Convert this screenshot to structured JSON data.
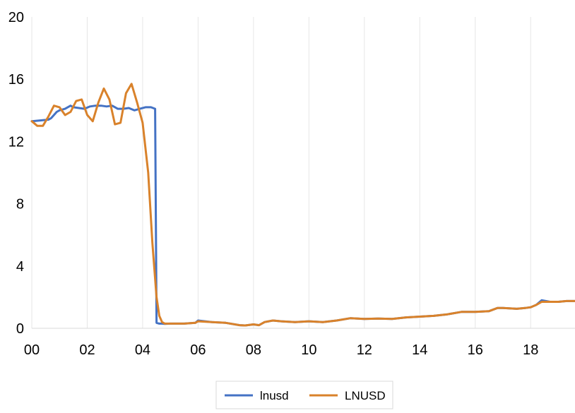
{
  "chart_data": {
    "type": "line",
    "title": "",
    "xlabel": "",
    "ylabel": "",
    "xlim": [
      0,
      19.6
    ],
    "ylim": [
      0,
      20
    ],
    "grid": {
      "vertical": true,
      "horizontal": false
    },
    "legend_position": "bottom-center",
    "y_ticks": [
      "0",
      "4",
      "8",
      "12",
      "16",
      "20"
    ],
    "x_ticks": [
      "00",
      "02",
      "04",
      "06",
      "08",
      "10",
      "12",
      "14",
      "16",
      "18"
    ],
    "series": [
      {
        "name": "lnusd",
        "color": "#4472c4",
        "x": [
          0.0,
          0.3,
          0.6,
          0.7,
          0.9,
          1.0,
          1.2,
          1.4,
          1.5,
          1.7,
          1.9,
          2.1,
          2.3,
          2.5,
          2.7,
          2.9,
          3.1,
          3.3,
          3.5,
          3.7,
          3.9,
          4.1,
          4.3,
          4.45,
          4.5,
          4.6,
          4.7,
          4.8,
          5.0,
          5.5,
          5.9,
          6.0,
          6.5,
          7.0,
          7.5,
          7.7,
          8.0,
          8.2,
          8.4,
          8.7,
          9.0,
          9.5,
          10.0,
          10.5,
          11.0,
          11.5,
          12.0,
          12.5,
          13.0,
          13.5,
          14.0,
          14.5,
          15.0,
          15.5,
          16.0,
          16.5,
          16.8,
          17.0,
          17.5,
          17.8,
          18.0,
          18.2,
          18.4,
          18.7,
          19.0,
          19.3,
          19.6
        ],
        "y": [
          13.3,
          13.35,
          13.4,
          13.5,
          13.9,
          14.0,
          14.1,
          14.3,
          14.2,
          14.15,
          14.1,
          14.25,
          14.3,
          14.3,
          14.25,
          14.3,
          14.1,
          14.1,
          14.15,
          14.0,
          14.1,
          14.2,
          14.2,
          14.1,
          0.35,
          0.3,
          0.3,
          0.28,
          0.3,
          0.3,
          0.35,
          0.5,
          0.4,
          0.35,
          0.2,
          0.18,
          0.25,
          0.2,
          0.4,
          0.5,
          0.45,
          0.4,
          0.45,
          0.4,
          0.5,
          0.65,
          0.6,
          0.62,
          0.6,
          0.7,
          0.75,
          0.8,
          0.9,
          1.05,
          1.05,
          1.1,
          1.3,
          1.3,
          1.25,
          1.3,
          1.35,
          1.5,
          1.8,
          1.7,
          1.7,
          1.75,
          1.75
        ]
      },
      {
        "name": "LNUSD",
        "color": "#d9822b",
        "x": [
          0.0,
          0.2,
          0.4,
          0.6,
          0.8,
          1.0,
          1.2,
          1.4,
          1.6,
          1.8,
          2.0,
          2.2,
          2.4,
          2.6,
          2.8,
          3.0,
          3.2,
          3.4,
          3.6,
          3.8,
          4.0,
          4.2,
          4.35,
          4.5,
          4.6,
          4.7,
          4.8,
          4.9,
          5.0,
          5.5,
          5.9,
          6.0,
          6.5,
          7.0,
          7.5,
          7.7,
          8.0,
          8.2,
          8.4,
          8.7,
          9.0,
          9.5,
          10.0,
          10.5,
          11.0,
          11.5,
          12.0,
          12.5,
          13.0,
          13.5,
          14.0,
          14.5,
          15.0,
          15.5,
          16.0,
          16.5,
          16.8,
          17.0,
          17.5,
          17.8,
          18.0,
          18.2,
          18.4,
          18.7,
          19.0,
          19.3,
          19.6
        ],
        "y": [
          13.3,
          13.0,
          13.0,
          13.6,
          14.3,
          14.2,
          13.7,
          13.9,
          14.6,
          14.7,
          13.7,
          13.3,
          14.5,
          15.4,
          14.7,
          13.1,
          13.2,
          15.1,
          15.7,
          14.5,
          13.2,
          10.0,
          5.5,
          2.0,
          0.8,
          0.4,
          0.3,
          0.3,
          0.3,
          0.3,
          0.35,
          0.45,
          0.4,
          0.35,
          0.2,
          0.18,
          0.25,
          0.2,
          0.4,
          0.5,
          0.45,
          0.4,
          0.45,
          0.4,
          0.5,
          0.65,
          0.6,
          0.62,
          0.6,
          0.7,
          0.75,
          0.8,
          0.9,
          1.05,
          1.05,
          1.1,
          1.3,
          1.3,
          1.25,
          1.3,
          1.35,
          1.5,
          1.7,
          1.7,
          1.7,
          1.75,
          1.75
        ]
      }
    ]
  }
}
